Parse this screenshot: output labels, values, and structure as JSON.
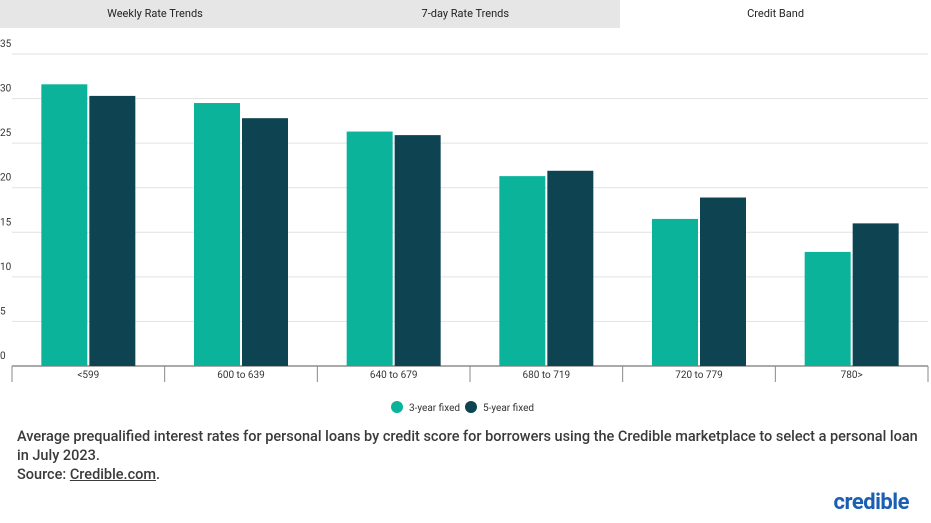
{
  "tabs": [
    "Weekly Rate Trends",
    "7-day Rate Trends",
    "Credit Band"
  ],
  "active_tab": 2,
  "chart_data": {
    "type": "bar",
    "categories": [
      "<599",
      "600 to 639",
      "640 to 679",
      "680 to 719",
      "720 to 779",
      "780>"
    ],
    "series": [
      {
        "name": "3-year fixed",
        "color": "#0bb39a",
        "values": [
          31.6,
          29.5,
          26.3,
          21.3,
          16.5,
          12.8
        ]
      },
      {
        "name": "5-year fixed",
        "color": "#0e4452",
        "values": [
          30.3,
          27.8,
          25.9,
          21.9,
          18.9,
          16.0
        ]
      }
    ],
    "ylim": [
      0,
      35
    ],
    "yticks": [
      0,
      5,
      10,
      15,
      20,
      25,
      30,
      35
    ],
    "grid": true
  },
  "caption": "Average prequalified interest rates for personal loans by credit score for borrowers using the Credible marketplace to select a personal loan in July 2023.",
  "source": {
    "label": "Source:",
    "link": "Credible.com",
    "end": "."
  },
  "logo": "credible"
}
